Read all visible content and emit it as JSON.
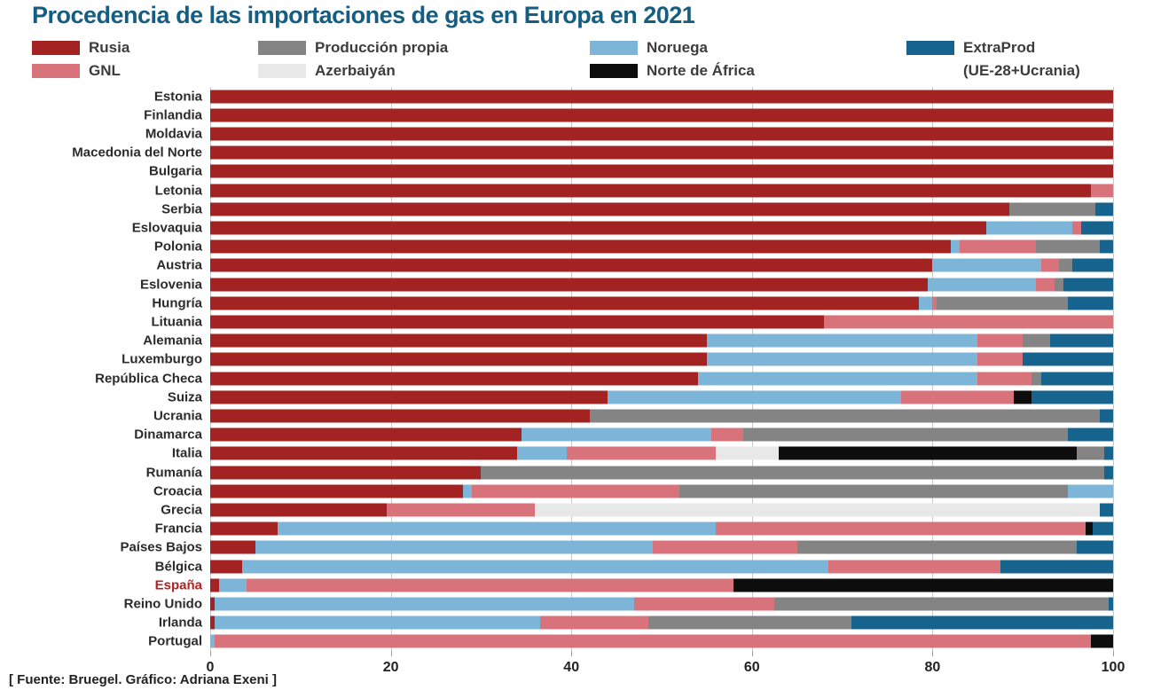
{
  "title": "Procedencia de las importaciones de gas en Europa en 2021",
  "source": "[ Fuente: Bruegel. Gráfico: Adriana Exeni ]",
  "colors": {
    "rusia": "#a32222",
    "gnl": "#d9737b",
    "produccion": "#848484",
    "azerbaiyan": "#e8e8e8",
    "noruega": "#7cb5d8",
    "africa": "#0d0d0d",
    "extraprod": "#16638e",
    "title_text": "#155d81",
    "highlight_label": "#b22222",
    "label_text": "#2b2b2b"
  },
  "legend": {
    "items": [
      {
        "key": "rusia",
        "label": "Rusia"
      },
      {
        "key": "gnl",
        "label": "GNL"
      },
      {
        "key": "produccion",
        "label": "Producción propia"
      },
      {
        "key": "azerbaiyan",
        "label": "Azerbaiyán"
      },
      {
        "key": "noruega",
        "label": "Noruega"
      },
      {
        "key": "africa",
        "label": "Norte de África"
      },
      {
        "key": "extraprod",
        "label": "ExtraProd",
        "sublabel": "(UE-28+Ucrania)"
      }
    ]
  },
  "chart_data": {
    "type": "bar",
    "orientation": "horizontal-stacked",
    "title": "Procedencia de las importaciones de gas en Europa en 2021",
    "xlabel": "",
    "ylabel": "",
    "xlim": [
      0,
      100
    ],
    "x_axis": {
      "ticks": [
        0,
        20,
        40,
        60,
        80,
        100
      ]
    },
    "grid": true,
    "legend_position": "top",
    "rows": [
      {
        "country": "Estonia",
        "segments": [
          [
            "rusia",
            100
          ]
        ]
      },
      {
        "country": "Finlandia",
        "segments": [
          [
            "rusia",
            100
          ]
        ]
      },
      {
        "country": "Moldavia",
        "segments": [
          [
            "rusia",
            100
          ]
        ]
      },
      {
        "country": "Macedonia del Norte",
        "segments": [
          [
            "rusia",
            100
          ]
        ]
      },
      {
        "country": "Bulgaria",
        "segments": [
          [
            "rusia",
            100
          ]
        ]
      },
      {
        "country": "Letonia",
        "segments": [
          [
            "rusia",
            97.5
          ],
          [
            "gnl",
            2.5
          ]
        ]
      },
      {
        "country": "Serbia",
        "segments": [
          [
            "rusia",
            88.5
          ],
          [
            "produccion",
            9.5
          ],
          [
            "extraprod",
            2
          ]
        ]
      },
      {
        "country": "Eslovaquia",
        "segments": [
          [
            "rusia",
            86
          ],
          [
            "noruega",
            9.5
          ],
          [
            "gnl",
            1
          ],
          [
            "extraprod",
            3.5
          ]
        ]
      },
      {
        "country": "Polonia",
        "segments": [
          [
            "rusia",
            82
          ],
          [
            "noruega",
            1
          ],
          [
            "gnl",
            8.5
          ],
          [
            "produccion",
            7
          ],
          [
            "extraprod",
            1.5
          ]
        ]
      },
      {
        "country": "Austria",
        "segments": [
          [
            "rusia",
            80
          ],
          [
            "noruega",
            12
          ],
          [
            "gnl",
            2
          ],
          [
            "produccion",
            1.5
          ],
          [
            "extraprod",
            4.5
          ]
        ]
      },
      {
        "country": "Eslovenia",
        "segments": [
          [
            "rusia",
            79.5
          ],
          [
            "noruega",
            12
          ],
          [
            "gnl",
            2
          ],
          [
            "produccion",
            1
          ],
          [
            "extraprod",
            5.5
          ]
        ]
      },
      {
        "country": "Hungría",
        "segments": [
          [
            "rusia",
            78.5
          ],
          [
            "noruega",
            1.5
          ],
          [
            "gnl",
            0.5
          ],
          [
            "produccion",
            14.5
          ],
          [
            "extraprod",
            5
          ]
        ]
      },
      {
        "country": "Lituania",
        "segments": [
          [
            "rusia",
            68
          ],
          [
            "gnl",
            32
          ]
        ]
      },
      {
        "country": "Alemania",
        "segments": [
          [
            "rusia",
            55
          ],
          [
            "noruega",
            30
          ],
          [
            "gnl",
            5
          ],
          [
            "produccion",
            3
          ],
          [
            "extraprod",
            7
          ]
        ]
      },
      {
        "country": "Luxemburgo",
        "segments": [
          [
            "rusia",
            55
          ],
          [
            "noruega",
            30
          ],
          [
            "gnl",
            5
          ],
          [
            "extraprod",
            10
          ]
        ]
      },
      {
        "country": "República Checa",
        "segments": [
          [
            "rusia",
            54
          ],
          [
            "noruega",
            31
          ],
          [
            "gnl",
            6
          ],
          [
            "produccion",
            1
          ],
          [
            "extraprod",
            8
          ]
        ]
      },
      {
        "country": "Suiza",
        "segments": [
          [
            "rusia",
            44
          ],
          [
            "noruega",
            32.5
          ],
          [
            "gnl",
            12.5
          ],
          [
            "africa",
            2
          ],
          [
            "extraprod",
            9
          ]
        ]
      },
      {
        "country": "Ucrania",
        "segments": [
          [
            "rusia",
            42
          ],
          [
            "produccion",
            56.5
          ],
          [
            "extraprod",
            1.5
          ]
        ]
      },
      {
        "country": "Dinamarca",
        "segments": [
          [
            "rusia",
            34.5
          ],
          [
            "noruega",
            21
          ],
          [
            "gnl",
            3.5
          ],
          [
            "produccion",
            36
          ],
          [
            "extraprod",
            5
          ]
        ]
      },
      {
        "country": "Italia",
        "segments": [
          [
            "rusia",
            34
          ],
          [
            "noruega",
            5.5
          ],
          [
            "gnl",
            16.5
          ],
          [
            "azerbaiyan",
            7
          ],
          [
            "africa",
            33
          ],
          [
            "produccion",
            3
          ],
          [
            "extraprod",
            1
          ]
        ]
      },
      {
        "country": "Rumanía",
        "segments": [
          [
            "rusia",
            30
          ],
          [
            "produccion",
            69
          ],
          [
            "extraprod",
            1
          ]
        ]
      },
      {
        "country": "Croacia",
        "segments": [
          [
            "rusia",
            28
          ],
          [
            "noruega",
            1
          ],
          [
            "gnl",
            23
          ],
          [
            "produccion",
            43
          ],
          [
            "noruega",
            5
          ]
        ]
      },
      {
        "country": "Grecia",
        "segments": [
          [
            "rusia",
            19.5
          ],
          [
            "gnl",
            16.5
          ],
          [
            "azerbaiyan",
            62.5
          ],
          [
            "extraprod",
            1.5
          ]
        ]
      },
      {
        "country": "Francia",
        "segments": [
          [
            "rusia",
            7.5
          ],
          [
            "noruega",
            48.5
          ],
          [
            "gnl",
            41
          ],
          [
            "africa",
            0.7
          ],
          [
            "extraprod",
            2.3
          ]
        ]
      },
      {
        "country": "Países Bajos",
        "segments": [
          [
            "rusia",
            5
          ],
          [
            "noruega",
            44
          ],
          [
            "gnl",
            16
          ],
          [
            "produccion",
            31
          ],
          [
            "extraprod",
            4
          ]
        ]
      },
      {
        "country": "Bélgica",
        "segments": [
          [
            "rusia",
            3.5
          ],
          [
            "noruega",
            65
          ],
          [
            "gnl",
            19
          ],
          [
            "extraprod",
            12.5
          ]
        ]
      },
      {
        "country": "España",
        "highlight": true,
        "segments": [
          [
            "rusia",
            1
          ],
          [
            "noruega",
            3
          ],
          [
            "gnl",
            54
          ],
          [
            "africa",
            42
          ]
        ]
      },
      {
        "country": "Reino Unido",
        "segments": [
          [
            "rusia",
            0.5
          ],
          [
            "noruega",
            46.5
          ],
          [
            "gnl",
            15.5
          ],
          [
            "produccion",
            37
          ],
          [
            "extraprod",
            0.5
          ]
        ]
      },
      {
        "country": "Irlanda",
        "segments": [
          [
            "rusia",
            0.5
          ],
          [
            "noruega",
            36
          ],
          [
            "gnl",
            12
          ],
          [
            "produccion",
            22.5
          ],
          [
            "extraprod",
            29
          ]
        ]
      },
      {
        "country": "Portugal",
        "segments": [
          [
            "noruega",
            0.5
          ],
          [
            "gnl",
            97
          ],
          [
            "africa",
            2.5
          ]
        ]
      }
    ]
  }
}
